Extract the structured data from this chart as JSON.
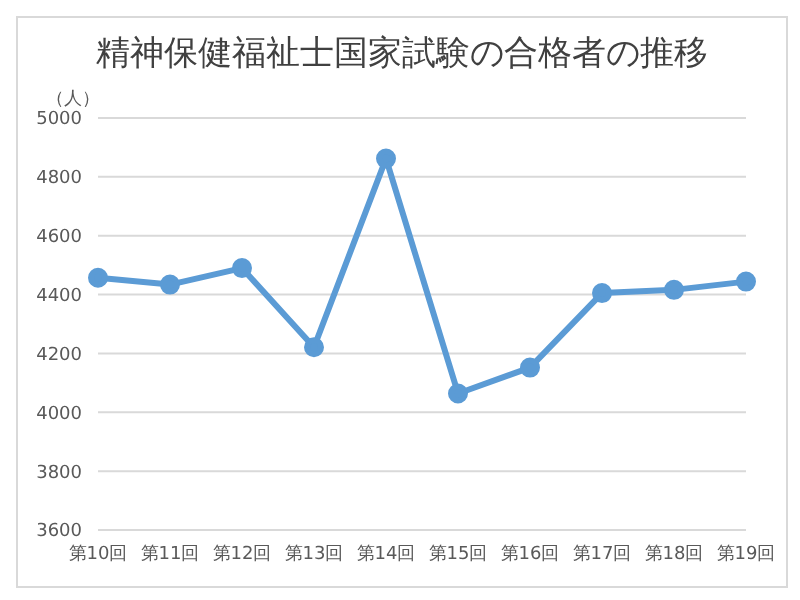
{
  "chart_data": {
    "type": "line",
    "title": "精神保健福祉士国家試験の合格者の推移",
    "ylabel": "（人）",
    "categories": [
      "第10回",
      "第11回",
      "第12回",
      "第13回",
      "第14回",
      "第15回",
      "第16回",
      "第17回",
      "第18回",
      "第19回"
    ],
    "series": [
      {
        "color": "#5b9bd5",
        "values": [
          4457,
          4434,
          4490,
          4221,
          4862,
          4064,
          4152,
          4405,
          4416,
          4444
        ]
      }
    ],
    "ylim": [
      3600,
      5000
    ],
    "yticks": [
      3600,
      3800,
      4000,
      4200,
      4400,
      4600,
      4800,
      5000
    ],
    "grid": "y",
    "marker": "circle",
    "legend": false
  }
}
